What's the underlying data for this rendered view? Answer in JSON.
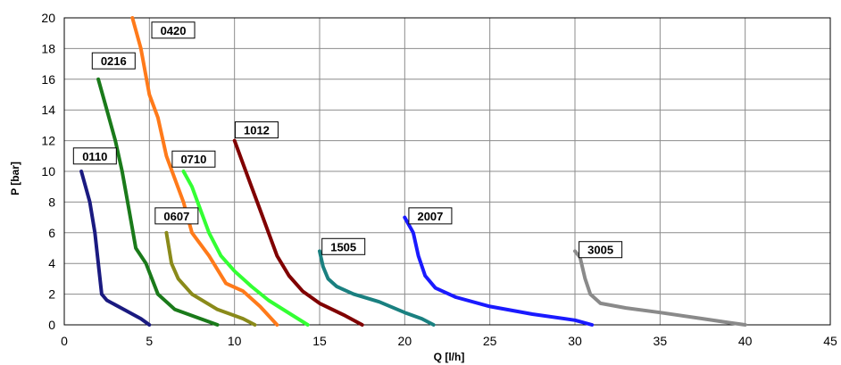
{
  "chart_data": {
    "type": "line",
    "title": "",
    "xlabel": "Q [l/h]",
    "ylabel": "P [bar]",
    "xlim": [
      0,
      45
    ],
    "ylim": [
      0,
      20
    ],
    "xticks": [
      0,
      5,
      10,
      15,
      20,
      25,
      30,
      35,
      40,
      45
    ],
    "yticks": [
      0,
      2,
      4,
      6,
      8,
      10,
      12,
      14,
      16,
      18,
      20
    ],
    "grid": true,
    "legend": "none",
    "series": [
      {
        "name": "0110",
        "color": "#1a1a80",
        "label_at": [
          1.8,
          11
        ],
        "points": [
          [
            1.0,
            10
          ],
          [
            1.5,
            8
          ],
          [
            1.8,
            6
          ],
          [
            2.0,
            4
          ],
          [
            2.2,
            2
          ],
          [
            2.5,
            1.6
          ],
          [
            3.5,
            1.0
          ],
          [
            4.5,
            0.4
          ],
          [
            5.0,
            0
          ]
        ]
      },
      {
        "name": "0216",
        "color": "#1a7a1a",
        "label_at": [
          2.9,
          17.2
        ],
        "points": [
          [
            2.0,
            16
          ],
          [
            2.5,
            14
          ],
          [
            3.0,
            12
          ],
          [
            3.4,
            10
          ],
          [
            3.8,
            7.5
          ],
          [
            4.2,
            5
          ],
          [
            4.8,
            4
          ],
          [
            5.5,
            2
          ],
          [
            6.5,
            1.0
          ],
          [
            8.0,
            0.4
          ],
          [
            9.0,
            0
          ]
        ]
      },
      {
        "name": "0420",
        "color": "#ff7a1a",
        "label_at": [
          6.4,
          19.2
        ],
        "points": [
          [
            4.0,
            20
          ],
          [
            4.5,
            18
          ],
          [
            5.0,
            15
          ],
          [
            5.5,
            13.5
          ],
          [
            6.0,
            11
          ],
          [
            6.5,
            9.5
          ],
          [
            7.0,
            8
          ],
          [
            7.5,
            6
          ],
          [
            8.5,
            4.5
          ],
          [
            9.5,
            2.7
          ],
          [
            10.5,
            2.2
          ],
          [
            11.5,
            1.2
          ],
          [
            12.5,
            0
          ]
        ]
      },
      {
        "name": "0607",
        "color": "#8a8a1a",
        "label_at": [
          6.6,
          7.1
        ],
        "points": [
          [
            6.0,
            6
          ],
          [
            6.3,
            4
          ],
          [
            6.7,
            3
          ],
          [
            7.5,
            2
          ],
          [
            9.0,
            1.0
          ],
          [
            10.5,
            0.4
          ],
          [
            11.2,
            0
          ]
        ]
      },
      {
        "name": "0710",
        "color": "#33ff33",
        "label_at": [
          7.6,
          10.8
        ],
        "points": [
          [
            7.0,
            10
          ],
          [
            7.5,
            9
          ],
          [
            8.0,
            7.5
          ],
          [
            8.5,
            6
          ],
          [
            9.2,
            4.5
          ],
          [
            10.0,
            3.5
          ],
          [
            11.0,
            2.5
          ],
          [
            12.0,
            1.6
          ],
          [
            13.0,
            0.9
          ],
          [
            14.3,
            0
          ]
        ]
      },
      {
        "name": "1012",
        "color": "#800000",
        "label_at": [
          11.3,
          12.7
        ],
        "points": [
          [
            10.0,
            12
          ],
          [
            10.5,
            10.5
          ],
          [
            11.0,
            9
          ],
          [
            11.5,
            7.5
          ],
          [
            12.0,
            6
          ],
          [
            12.5,
            4.5
          ],
          [
            13.2,
            3.2
          ],
          [
            14.0,
            2.2
          ],
          [
            15.0,
            1.4
          ],
          [
            16.5,
            0.6
          ],
          [
            17.5,
            0
          ]
        ]
      },
      {
        "name": "1505",
        "color": "#1a8080",
        "label_at": [
          16.4,
          5.1
        ],
        "points": [
          [
            15.0,
            4.8
          ],
          [
            15.2,
            3.8
          ],
          [
            15.5,
            3.0
          ],
          [
            16.0,
            2.5
          ],
          [
            17.0,
            2.0
          ],
          [
            18.5,
            1.5
          ],
          [
            20.0,
            0.8
          ],
          [
            21.0,
            0.4
          ],
          [
            21.7,
            0
          ]
        ]
      },
      {
        "name": "2007",
        "color": "#1a1aff",
        "label_at": [
          21.5,
          7.1
        ],
        "points": [
          [
            20.0,
            7
          ],
          [
            20.5,
            6
          ],
          [
            20.8,
            4.5
          ],
          [
            21.2,
            3.2
          ],
          [
            21.8,
            2.4
          ],
          [
            23.0,
            1.8
          ],
          [
            25.0,
            1.2
          ],
          [
            27.5,
            0.7
          ],
          [
            30.0,
            0.3
          ],
          [
            31.0,
            0
          ]
        ]
      },
      {
        "name": "3005",
        "color": "#8a8a8a",
        "label_at": [
          31.5,
          4.9
        ],
        "points": [
          [
            30.0,
            4.8
          ],
          [
            30.3,
            4.4
          ],
          [
            30.6,
            3.0
          ],
          [
            30.9,
            2.0
          ],
          [
            31.5,
            1.4
          ],
          [
            33.0,
            1.1
          ],
          [
            35.0,
            0.8
          ],
          [
            37.5,
            0.4
          ],
          [
            39.0,
            0.15
          ],
          [
            40.0,
            0
          ]
        ]
      }
    ]
  }
}
